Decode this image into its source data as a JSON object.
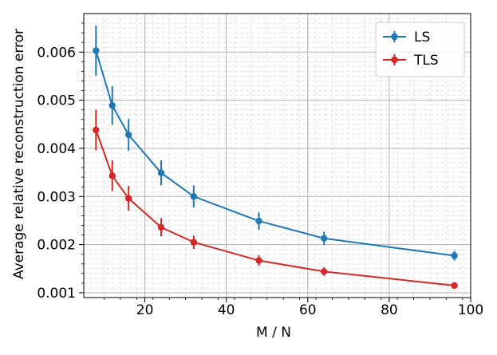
{
  "chart_data": {
    "type": "line",
    "xlabel": "M / N",
    "ylabel": "Average relative reconstruction error",
    "xlim": [
      5,
      100
    ],
    "ylim": [
      0.0009,
      0.0068
    ],
    "x_ticks": [
      20,
      40,
      60,
      80,
      100
    ],
    "y_ticks": [
      0.001,
      0.002,
      0.003,
      0.004,
      0.005,
      0.006
    ],
    "x_tick_labels": [
      "20",
      "40",
      "60",
      "80",
      "100"
    ],
    "y_tick_labels": [
      "0.001",
      "0.002",
      "0.003",
      "0.004",
      "0.005",
      "0.006"
    ],
    "grid": true,
    "minor_grid": true,
    "legend_position": "top-right",
    "x": [
      8,
      12,
      16,
      24,
      32,
      48,
      64,
      96
    ],
    "series": [
      {
        "name": "LS",
        "color": "#1f77b4",
        "values": [
          0.00603,
          0.00489,
          0.00428,
          0.00349,
          0.003,
          0.00249,
          0.00213,
          0.00177
        ],
        "errors": [
          0.00052,
          0.0004,
          0.00033,
          0.00026,
          0.00023,
          0.00018,
          0.00014,
          0.0001
        ]
      },
      {
        "name": "TLS",
        "color": "#d62728",
        "values": [
          0.00438,
          0.00343,
          0.00296,
          0.00236,
          0.00205,
          0.00167,
          0.00144,
          0.00115
        ],
        "errors": [
          0.00042,
          0.00032,
          0.00026,
          0.00019,
          0.00014,
          0.00011,
          9e-05,
          6e-05
        ]
      }
    ]
  }
}
